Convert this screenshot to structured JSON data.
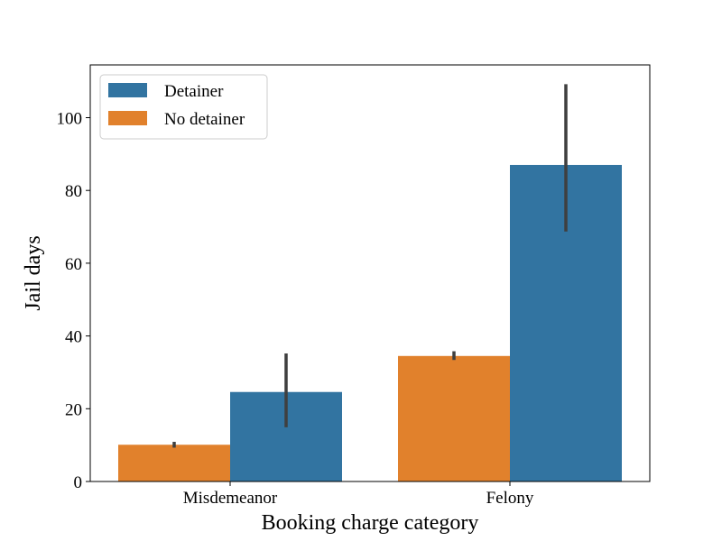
{
  "chart_data": {
    "type": "bar",
    "xlabel": "Booking charge category",
    "ylabel": "Jail days",
    "categories": [
      "Misdemeanor",
      "Felony"
    ],
    "ylim": [
      0,
      114.5
    ],
    "yticks": [
      0,
      20,
      40,
      60,
      80,
      100
    ],
    "grid": false,
    "legend": {
      "placement": "top-left",
      "order": [
        "Detainer",
        "No detainer"
      ]
    },
    "series": [
      {
        "name": "No detainer",
        "color": "#e1812c",
        "values": [
          10.1,
          34.5
        ],
        "ci_low": [
          9.3,
          33.4
        ],
        "ci_high": [
          10.9,
          35.8
        ]
      },
      {
        "name": "Detainer",
        "color": "#3274a1",
        "values": [
          24.6,
          87.0
        ],
        "ci_low": [
          14.9,
          68.7
        ],
        "ci_high": [
          35.2,
          109.2
        ]
      }
    ],
    "errorbar_color": "#3f3f3f"
  }
}
